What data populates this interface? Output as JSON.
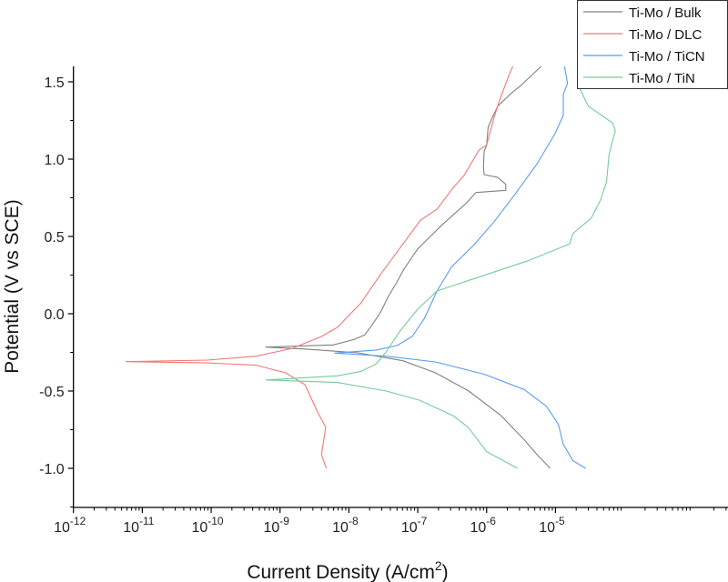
{
  "chart_data": {
    "type": "line",
    "title": "",
    "xlabel": "Current Density (A/cm",
    "xlabel_sup": "2",
    "xlabel_end": ")",
    "ylabel": "Potential (V vs SCE)",
    "x_scale": "log",
    "xlim": [
      1e-12,
      0.0032
    ],
    "ylim": [
      -1.253,
      1.6
    ],
    "x_tick_base": "10",
    "x_tick_exponents": [
      "-12",
      "-11",
      "-10",
      "-9",
      "-8",
      "-7",
      "-6",
      "-5"
    ],
    "y_ticks": [
      "-1.0",
      "-0.5",
      "0.0",
      "0.5",
      "1.0",
      "1.5"
    ],
    "grid": false,
    "legend_position": "top-right",
    "series": [
      {
        "name": "Ti-Mo / Bulk",
        "color": "#808080",
        "points": [
          [
            8.4e-06,
            -1.0
          ],
          [
            5.4e-06,
            -0.912
          ],
          [
            3.5e-06,
            -0.814
          ],
          [
            1.6e-06,
            -0.657
          ],
          [
            5.5e-07,
            -0.5
          ],
          [
            1.8e-07,
            -0.382
          ],
          [
            6.1e-08,
            -0.304
          ],
          [
            3.2e-08,
            -0.282
          ],
          [
            1.35e-08,
            -0.253
          ],
          [
            2.3e-09,
            -0.228
          ],
          [
            6.2e-10,
            -0.216
          ],
          [
            5.9e-09,
            -0.202
          ],
          [
            1.2e-08,
            -0.166
          ],
          [
            1.7e-08,
            -0.137
          ],
          [
            2.2e-08,
            -0.069
          ],
          [
            2.9e-08,
            0.012
          ],
          [
            3.7e-08,
            0.108
          ],
          [
            5e-08,
            0.206
          ],
          [
            6.2e-08,
            0.284
          ],
          [
            1e-07,
            0.42
          ],
          [
            2.3e-07,
            0.578
          ],
          [
            5.1e-07,
            0.716
          ],
          [
            7e-07,
            0.784
          ],
          [
            1.9e-06,
            0.798
          ],
          [
            1.9e-06,
            0.837
          ],
          [
            1.45e-06,
            0.882
          ],
          [
            9.2e-07,
            0.9
          ],
          [
            9e-07,
            0.95
          ],
          [
            9.2e-07,
            1.05
          ],
          [
            1e-06,
            1.088
          ],
          [
            1.05e-06,
            1.206
          ],
          [
            1.2e-06,
            1.265
          ],
          [
            1.45e-06,
            1.343
          ],
          [
            2.2e-06,
            1.42
          ],
          [
            3.2e-06,
            1.48
          ],
          [
            6.2e-06,
            1.6
          ]
        ]
      },
      {
        "name": "Ti-Mo / DLC",
        "color": "#f07878",
        "points": [
          [
            4.7e-09,
            -1.0
          ],
          [
            4e-09,
            -0.912
          ],
          [
            4.6e-09,
            -0.735
          ],
          [
            3.5e-09,
            -0.635
          ],
          [
            2.3e-09,
            -0.459
          ],
          [
            1.2e-09,
            -0.382
          ],
          [
            4.5e-10,
            -0.333
          ],
          [
            8.7e-11,
            -0.318
          ],
          [
            5.8e-12,
            -0.31
          ],
          [
            8.7e-11,
            -0.3
          ],
          [
            4.5e-10,
            -0.275
          ],
          [
            1.5e-09,
            -0.224
          ],
          [
            4e-09,
            -0.147
          ],
          [
            6.8e-09,
            -0.088
          ],
          [
            1.5e-08,
            0.07
          ],
          [
            3e-08,
            0.265
          ],
          [
            5.5e-08,
            0.424
          ],
          [
            1.1e-07,
            0.606
          ],
          [
            1.9e-07,
            0.676
          ],
          [
            3.2e-07,
            0.81
          ],
          [
            4.7e-07,
            0.894
          ],
          [
            7.8e-07,
            1.06
          ],
          [
            1e-06,
            1.09
          ],
          [
            1.3e-06,
            1.28
          ],
          [
            1.6e-06,
            1.4
          ],
          [
            2.1e-06,
            1.54
          ],
          [
            2.4e-06,
            1.6
          ]
        ]
      },
      {
        "name": "Ti-Mo / TiCN",
        "color": "#5b9bf0",
        "points": [
          [
            2.75e-05,
            -1.0
          ],
          [
            1.8e-05,
            -0.951
          ],
          [
            1.3e-05,
            -0.845
          ],
          [
            1.1e-05,
            -0.716
          ],
          [
            7.4e-06,
            -0.598
          ],
          [
            3.5e-06,
            -0.49
          ],
          [
            9.3e-07,
            -0.392
          ],
          [
            1.8e-07,
            -0.312
          ],
          [
            3.5e-08,
            -0.275
          ],
          [
            6.2e-09,
            -0.255
          ],
          [
            2.5e-08,
            -0.235
          ],
          [
            5e-08,
            -0.206
          ],
          [
            8.3e-08,
            -0.147
          ],
          [
            1.25e-07,
            -0.03
          ],
          [
            1.9e-07,
            0.147
          ],
          [
            3.1e-07,
            0.304
          ],
          [
            6.4e-07,
            0.441
          ],
          [
            1.3e-06,
            0.598
          ],
          [
            2.6e-06,
            0.775
          ],
          [
            5.4e-06,
            0.97
          ],
          [
            9.9e-06,
            1.167
          ],
          [
            1.3e-05,
            1.284
          ],
          [
            1.3e-05,
            1.42
          ],
          [
            1.5e-05,
            1.49
          ],
          [
            1.35e-05,
            1.6
          ]
        ]
      },
      {
        "name": "Ti-Mo / TiN",
        "color": "#74cc98",
        "points": [
          [
            2.8e-06,
            -1.0
          ],
          [
            1e-06,
            -0.892
          ],
          [
            5.4e-07,
            -0.735
          ],
          [
            3.2e-07,
            -0.657
          ],
          [
            1.05e-07,
            -0.559
          ],
          [
            3.5e-08,
            -0.5
          ],
          [
            6.8e-09,
            -0.445
          ],
          [
            6.3e-10,
            -0.428
          ],
          [
            6.8e-09,
            -0.402
          ],
          [
            1.5e-08,
            -0.373
          ],
          [
            2.5e-08,
            -0.324
          ],
          [
            3.5e-08,
            -0.245
          ],
          [
            5.6e-08,
            -0.108
          ],
          [
            1e-07,
            0.03
          ],
          [
            1.9e-07,
            0.147
          ],
          [
            6.4e-07,
            0.225
          ],
          [
            4e-06,
            0.343
          ],
          [
            1.6e-05,
            0.451
          ],
          [
            1.8e-05,
            0.52
          ],
          [
            3.3e-05,
            0.618
          ],
          [
            4.5e-05,
            0.735
          ],
          [
            5.5e-05,
            0.853
          ],
          [
            6e-05,
            1.03
          ],
          [
            7.4e-05,
            1.186
          ],
          [
            6.7e-05,
            1.235
          ],
          [
            3e-05,
            1.343
          ],
          [
            2.35e-05,
            1.44
          ],
          [
            2.2e-05,
            1.47
          ]
        ]
      }
    ]
  }
}
